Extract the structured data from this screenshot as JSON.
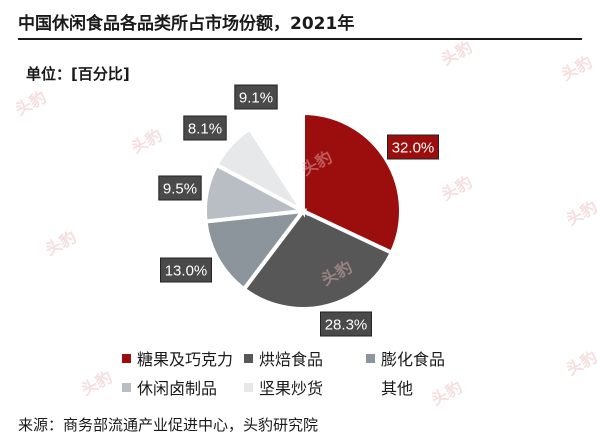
{
  "header": {
    "title": "中国休闲食品各品类所占市场份额，2021年",
    "unit": "单位：[百分比]"
  },
  "footer": {
    "source": "来源：商务部流通产业促进中心，头豹研究院"
  },
  "watermark": {
    "text": "头豹"
  },
  "chart_data": {
    "type": "pie",
    "title": "中国休闲食品各品类所占市场份额，2021年",
    "unit": "百分比",
    "categories": [
      "糖果及巧克力",
      "烘焙食品",
      "膨化食品",
      "休闲卤制品",
      "坚果炒货",
      "其他"
    ],
    "values": [
      32.0,
      28.3,
      13.0,
      9.5,
      8.1,
      9.1
    ],
    "labels": [
      "32.0%",
      "28.3%",
      "13.0%",
      "9.5%",
      "8.1%",
      "9.1%"
    ],
    "colors": [
      "#9c0e0e",
      "#575757",
      "#8d959c",
      "#b8bec3",
      "#e6e8ea",
      "#ffffff"
    ],
    "legend_position": "bottom",
    "start_angle_deg": 0,
    "direction": "clockwise"
  }
}
